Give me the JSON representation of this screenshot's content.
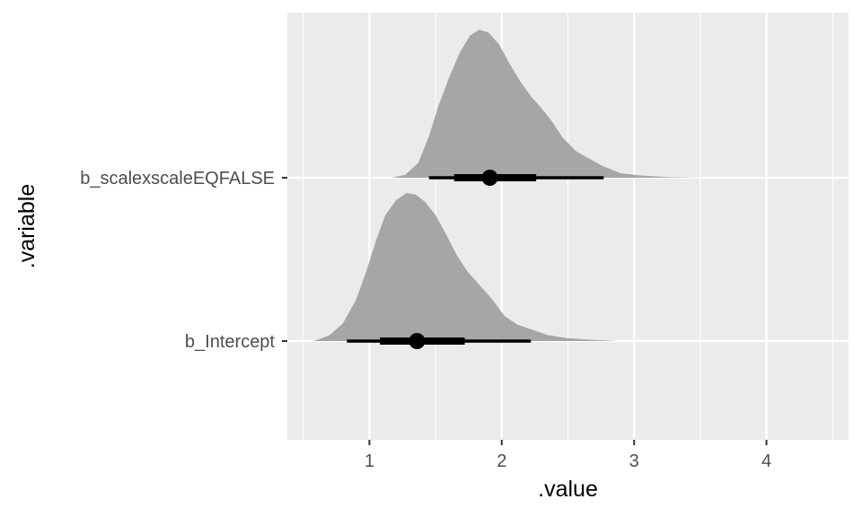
{
  "chart_data": {
    "type": "halfeye",
    "xlabel": ".value",
    "ylabel": ".variable",
    "xlim": [
      0.38,
      4.62
    ],
    "x_ticks": [
      1,
      2,
      3,
      4
    ],
    "grid": true,
    "colors": {
      "panel": "#ebebeb",
      "grid": "#ffffff",
      "density": "#a6a6a6",
      "interval": "#000000"
    },
    "series": [
      {
        "name": "b_Intercept",
        "point": 1.36,
        "interval_66": [
          1.08,
          1.72
        ],
        "interval_95": [
          0.83,
          2.22
        ],
        "density": [
          [
            0.58,
            0.0
          ],
          [
            0.7,
            0.04
          ],
          [
            0.8,
            0.12
          ],
          [
            0.9,
            0.28
          ],
          [
            0.98,
            0.48
          ],
          [
            1.05,
            0.68
          ],
          [
            1.12,
            0.85
          ],
          [
            1.2,
            0.95
          ],
          [
            1.28,
            1.0
          ],
          [
            1.35,
            0.99
          ],
          [
            1.42,
            0.94
          ],
          [
            1.5,
            0.85
          ],
          [
            1.58,
            0.72
          ],
          [
            1.66,
            0.58
          ],
          [
            1.74,
            0.47
          ],
          [
            1.82,
            0.39
          ],
          [
            1.92,
            0.29
          ],
          [
            2.02,
            0.17
          ],
          [
            2.12,
            0.11
          ],
          [
            2.22,
            0.08
          ],
          [
            2.35,
            0.04
          ],
          [
            2.5,
            0.02
          ],
          [
            2.65,
            0.01
          ],
          [
            2.88,
            0.0
          ]
        ]
      },
      {
        "name": "b_scalexscaleEQFALSE",
        "point": 1.91,
        "interval_66": [
          1.64,
          2.26
        ],
        "interval_95": [
          1.45,
          2.77
        ],
        "density": [
          [
            1.17,
            0.0
          ],
          [
            1.27,
            0.02
          ],
          [
            1.37,
            0.1
          ],
          [
            1.45,
            0.28
          ],
          [
            1.52,
            0.48
          ],
          [
            1.6,
            0.67
          ],
          [
            1.68,
            0.84
          ],
          [
            1.76,
            0.96
          ],
          [
            1.83,
            1.0
          ],
          [
            1.9,
            0.98
          ],
          [
            1.98,
            0.9
          ],
          [
            2.06,
            0.77
          ],
          [
            2.14,
            0.65
          ],
          [
            2.22,
            0.55
          ],
          [
            2.3,
            0.47
          ],
          [
            2.38,
            0.38
          ],
          [
            2.46,
            0.27
          ],
          [
            2.56,
            0.18
          ],
          [
            2.66,
            0.13
          ],
          [
            2.76,
            0.08
          ],
          [
            2.9,
            0.03
          ],
          [
            3.05,
            0.015
          ],
          [
            3.25,
            0.005
          ],
          [
            3.53,
            0.0
          ]
        ]
      }
    ]
  }
}
